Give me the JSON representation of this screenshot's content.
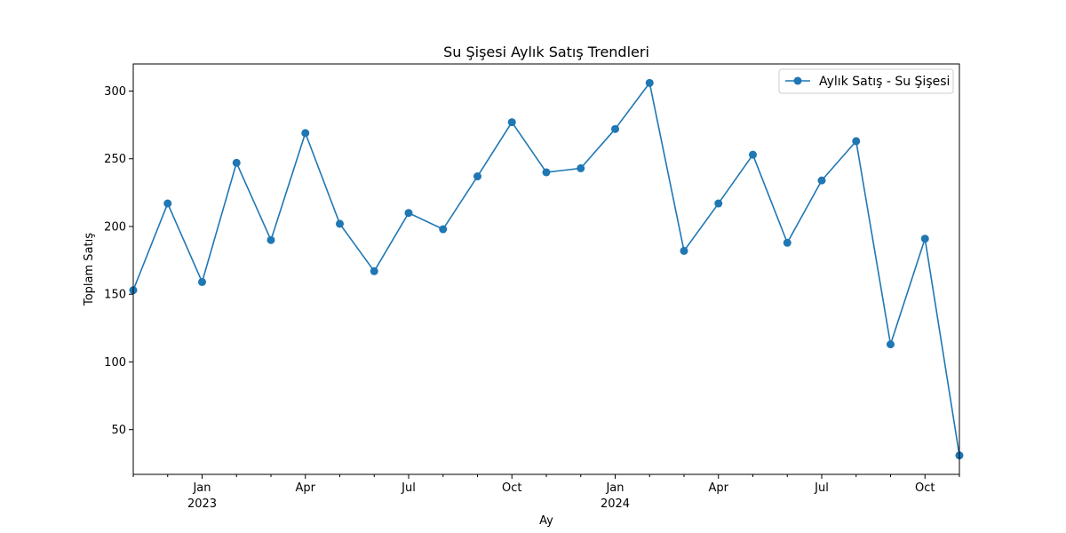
{
  "chart_data": {
    "type": "line",
    "title": "Su Şişesi Aylık Satış Trendleri",
    "xlabel": "Ay",
    "ylabel": "Toplam Satış",
    "x": [
      "2022-11",
      "2022-12",
      "2023-01",
      "2023-02",
      "2023-03",
      "2023-04",
      "2023-05",
      "2023-06",
      "2023-07",
      "2023-08",
      "2023-09",
      "2023-10",
      "2023-11",
      "2023-12",
      "2024-01",
      "2024-02",
      "2024-03",
      "2024-04",
      "2024-05",
      "2024-06",
      "2024-07",
      "2024-08",
      "2024-09",
      "2024-10",
      "2024-11"
    ],
    "series": [
      {
        "name": "Aylık Satış - Su Şişesi",
        "color": "#1f77b4",
        "values": [
          153,
          217,
          159,
          247,
          190,
          269,
          202,
          167,
          210,
          198,
          237,
          277,
          240,
          243,
          272,
          306,
          182,
          217,
          253,
          188,
          234,
          263,
          113,
          191,
          31
        ]
      }
    ],
    "ylim": [
      17,
      320
    ],
    "yticks": [
      50,
      100,
      150,
      200,
      250,
      300
    ],
    "xlim": [
      "2022-11",
      "2024-11"
    ],
    "xticks": [
      {
        "date": "2023-01",
        "label": "Jan",
        "sublabel": "2023"
      },
      {
        "date": "2023-04",
        "label": "Apr",
        "sublabel": ""
      },
      {
        "date": "2023-07",
        "label": "Jul",
        "sublabel": ""
      },
      {
        "date": "2023-10",
        "label": "Oct",
        "sublabel": ""
      },
      {
        "date": "2024-01",
        "label": "Jan",
        "sublabel": "2024"
      },
      {
        "date": "2024-04",
        "label": "Apr",
        "sublabel": ""
      },
      {
        "date": "2024-07",
        "label": "Jul",
        "sublabel": ""
      },
      {
        "date": "2024-10",
        "label": "Oct",
        "sublabel": ""
      }
    ],
    "legend_position": "top-right",
    "grid": false
  }
}
